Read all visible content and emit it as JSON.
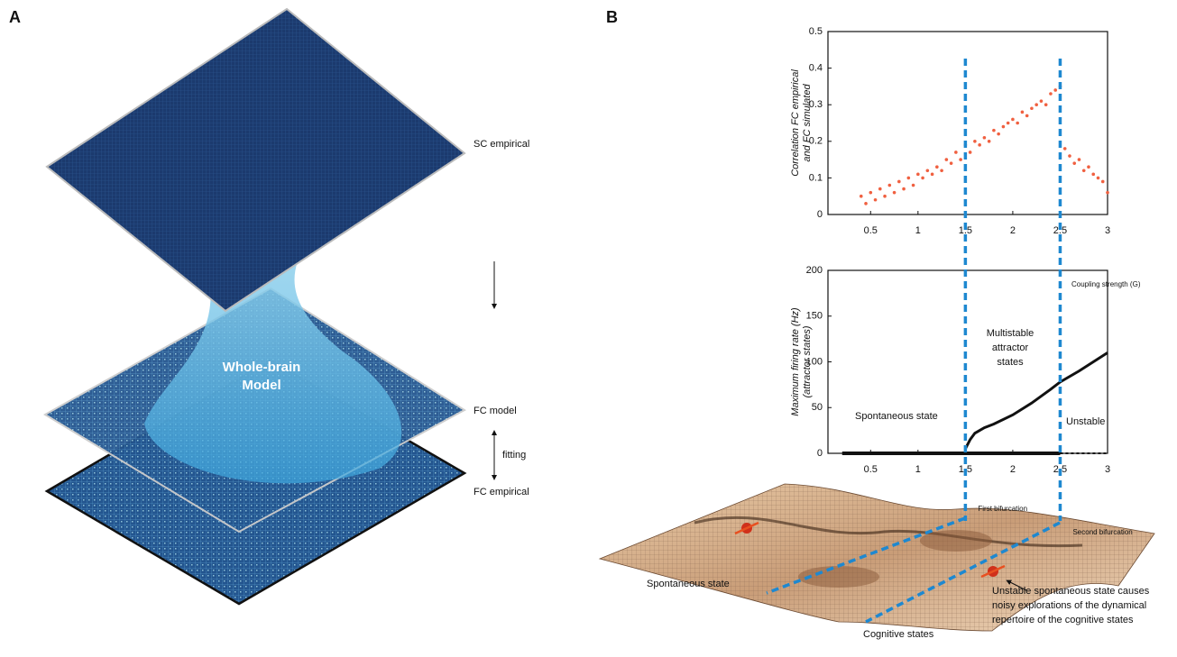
{
  "panel_a": {
    "label": "A",
    "layers": [
      "SC empirical",
      "FC model",
      "FC empirical"
    ],
    "model_label": [
      "Whole-brain",
      "Model"
    ],
    "fitting_label": "fitting"
  },
  "panel_b": {
    "label": "B",
    "landscape": {
      "spontaneous_label": "Spontaneous state",
      "cognitive_label": "Cognitive states",
      "note": [
        "Unstable spontaneous state causes",
        "noisy explorations of the dynamical",
        "repertoire of the cognitive states"
      ]
    }
  },
  "chart_data": [
    {
      "type": "scatter",
      "ylabel": [
        "Correlation FC empirical",
        "and FC simulated"
      ],
      "xlabel": "Coupling strength (G)",
      "color": "#f06040",
      "x": [
        0.4,
        0.45,
        0.5,
        0.55,
        0.6,
        0.65,
        0.7,
        0.75,
        0.8,
        0.85,
        0.9,
        0.95,
        1.0,
        1.05,
        1.1,
        1.15,
        1.2,
        1.25,
        1.3,
        1.35,
        1.4,
        1.45,
        1.5,
        1.55,
        1.6,
        1.65,
        1.7,
        1.75,
        1.8,
        1.85,
        1.9,
        1.95,
        2.0,
        2.05,
        2.1,
        2.15,
        2.2,
        2.25,
        2.3,
        2.35,
        2.4,
        2.45,
        2.5,
        2.55,
        2.6,
        2.65,
        2.7,
        2.75,
        2.8,
        2.85,
        2.9,
        2.95,
        3.0
      ],
      "values": [
        0.05,
        0.03,
        0.06,
        0.04,
        0.07,
        0.05,
        0.08,
        0.06,
        0.09,
        0.07,
        0.1,
        0.08,
        0.11,
        0.1,
        0.12,
        0.11,
        0.13,
        0.12,
        0.15,
        0.14,
        0.17,
        0.15,
        0.19,
        0.17,
        0.2,
        0.19,
        0.21,
        0.2,
        0.23,
        0.22,
        0.24,
        0.25,
        0.26,
        0.25,
        0.28,
        0.27,
        0.29,
        0.3,
        0.31,
        0.3,
        0.33,
        0.34,
        0.35,
        0.18,
        0.16,
        0.14,
        0.15,
        0.12,
        0.13,
        0.11,
        0.1,
        0.09,
        0.06
      ],
      "xlim": [
        0.05,
        3
      ],
      "ylim": [
        0,
        0.5
      ],
      "xticks": [
        0.5,
        1,
        1.5,
        2,
        2.5,
        3
      ],
      "yticks": [
        0,
        0.1,
        0.2,
        0.3,
        0.4,
        0.5
      ]
    },
    {
      "type": "line",
      "ylabel": [
        "Maximum firing rate (Hz)",
        "(attractor states)"
      ],
      "series": [
        {
          "color": "#111111",
          "line_width": 4,
          "dashed": false,
          "x": [
            0.2,
            1.5,
            2.5
          ],
          "values": [
            0,
            0,
            0
          ]
        },
        {
          "color": "#111111",
          "line_width": 2,
          "dashed": true,
          "x": [
            2.5,
            3
          ],
          "values": [
            0,
            0
          ]
        },
        {
          "color": "#111111",
          "line_width": 3,
          "dashed": false,
          "x": [
            1.5,
            1.55,
            1.6,
            1.7,
            1.8,
            2.0,
            2.2,
            2.4,
            2.5,
            2.7,
            3.0
          ],
          "values": [
            5,
            15,
            22,
            28,
            32,
            42,
            55,
            70,
            78,
            90,
            110
          ]
        }
      ],
      "bifurcations": [
        1.5,
        2.5
      ],
      "bifurcation_labels": [
        "First bifurcation",
        "Second bifurcation"
      ],
      "region_labels": [
        "Spontaneous state",
        "Multistable",
        "attractor",
        "states",
        "Unstable"
      ],
      "xlim": [
        0.05,
        3
      ],
      "ylim": [
        0,
        200
      ],
      "xticks": [
        0.5,
        1,
        1.5,
        2,
        2.5,
        3
      ],
      "yticks": [
        0,
        50,
        100,
        150,
        200
      ]
    }
  ]
}
